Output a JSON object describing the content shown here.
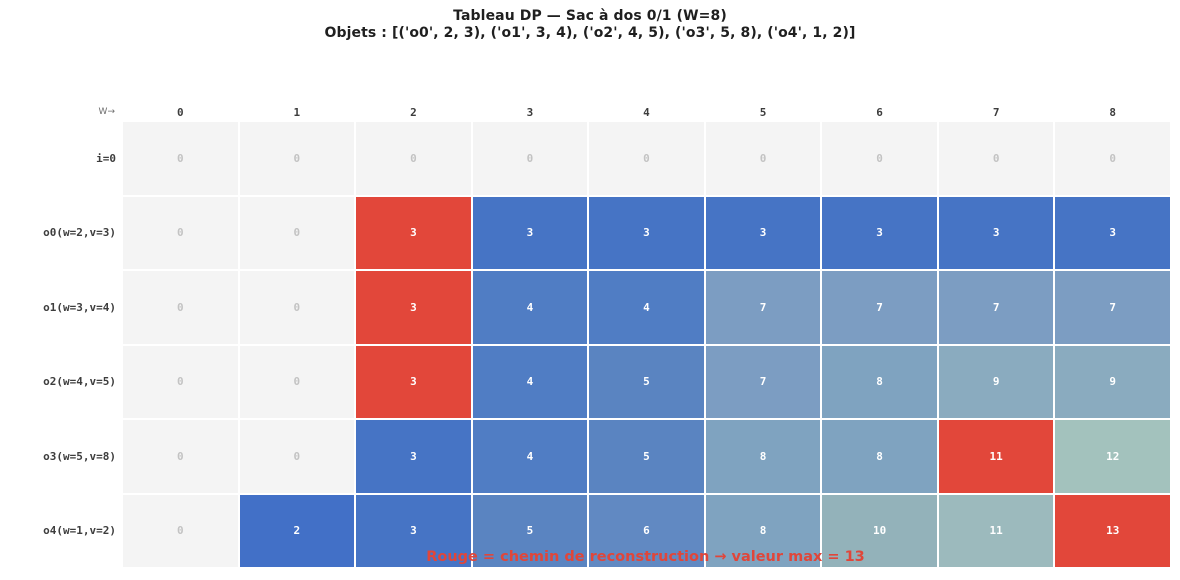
{
  "title": {
    "line1": "Tableau DP — Sac à dos 0/1 (W=8)",
    "line2": "Objets : [('o0', 2, 3), ('o1', 3, 4), ('o2', 4, 5), ('o3', 5, 8), ('o4', 1, 2)]"
  },
  "footer": {
    "note": "Rouge = chemin de reconstruction → valeur max = 13"
  },
  "colors": {
    "path": "#e2473a",
    "zero_bg": "#f4f4f4",
    "zero_text": "#c3c3c3",
    "cell_text": "#ffffff",
    "note_text": "#e0463a",
    "values": {
      "0": "#f4f4f4",
      "2": "#4270c7",
      "3": "#4674c5",
      "4": "#507dc4",
      "5": "#5a84c1",
      "6": "#6189c2",
      "7": "#7c9dc2",
      "8": "#7fa3c0",
      "9": "#8aabbf",
      "10": "#93b2ba",
      "11": "#9cbabd",
      "12": "#a3c2bd",
      "13": "#e2473a"
    }
  },
  "chart_data": {
    "type": "heatmap",
    "title": "Tableau DP — Sac à dos 0/1 (W=8)",
    "subtitle": "Objets : [('o0', 2, 3), ('o1', 3, 4), ('o2', 4, 5), ('o3', 5, 8), ('o4', 1, 2)]",
    "corner_label": "W→",
    "columns": [
      "0",
      "1",
      "2",
      "3",
      "4",
      "5",
      "6",
      "7",
      "8"
    ],
    "row_labels": [
      "i=0",
      "o0(w=2,v=3)",
      "o1(w=3,v=4)",
      "o2(w=4,v=5)",
      "o3(w=5,v=8)",
      "o4(w=1,v=2)"
    ],
    "values": [
      [
        0,
        0,
        0,
        0,
        0,
        0,
        0,
        0,
        0
      ],
      [
        0,
        0,
        3,
        3,
        3,
        3,
        3,
        3,
        3
      ],
      [
        0,
        0,
        3,
        4,
        4,
        7,
        7,
        7,
        7
      ],
      [
        0,
        0,
        3,
        4,
        5,
        7,
        8,
        9,
        9
      ],
      [
        0,
        0,
        3,
        4,
        5,
        8,
        8,
        11,
        12
      ],
      [
        0,
        2,
        3,
        5,
        6,
        8,
        10,
        11,
        13
      ]
    ],
    "path_cells": [
      [
        1,
        2
      ],
      [
        2,
        2
      ],
      [
        3,
        2
      ],
      [
        4,
        7
      ],
      [
        5,
        8
      ]
    ],
    "annotation": "Rouge = chemin de reconstruction → valeur max = 13",
    "legend_position": "none",
    "grid": false
  }
}
